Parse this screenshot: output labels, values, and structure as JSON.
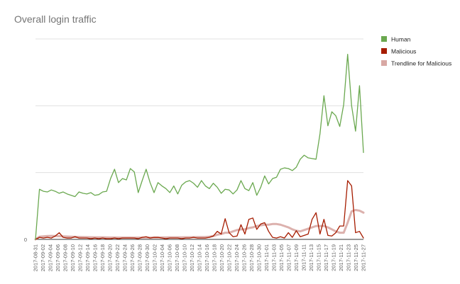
{
  "chart_data": {
    "type": "line",
    "title": "Overall login traffic",
    "xlabel": "",
    "ylabel": "",
    "ylim": [
      0,
      3
    ],
    "y_ticks": [
      {
        "value": 0,
        "label": "0"
      },
      {
        "value": 1,
        "label": ""
      },
      {
        "value": 2,
        "label": ""
      },
      {
        "value": 3,
        "label": ""
      }
    ],
    "grid": true,
    "legend_position": "right",
    "x_tick_labels": [
      "2017-08-31",
      "2017-09-02",
      "2017-09-04",
      "2017-09-06",
      "2017-09-08",
      "2017-09-10",
      "2017-09-12",
      "2017-09-14",
      "2017-09-16",
      "2017-09-18",
      "2017-09-20",
      "2017-09-22",
      "2017-09-24",
      "2017-09-26",
      "2017-09-28",
      "2017-09-30",
      "2017-10-02",
      "2017-10-04",
      "2017-10-06",
      "2017-10-08",
      "2017-10-10",
      "2017-10-12",
      "2017-10-14",
      "2017-10-16",
      "2017-10-18",
      "2017-10-20",
      "2017-10-22",
      "2017-10-24",
      "2017-10-26",
      "2017-10-28",
      "2017-10-30",
      "2017-11-01",
      "2017-11-03",
      "2017-11-05",
      "2017-11-07",
      "2017-11-09",
      "2017-11-11",
      "2017-11-13",
      "2017-11-15",
      "2017-11-17",
      "2017-11-19",
      "2017-11-21",
      "2017-11-23",
      "2017-11-25",
      "2017-11-27"
    ],
    "series": [
      {
        "name": "Human",
        "color": "#6aa84f",
        "values": [
          0,
          0.75,
          0.72,
          0.71,
          0.74,
          0.72,
          0.69,
          0.71,
          0.68,
          0.66,
          0.64,
          0.71,
          0.69,
          0.68,
          0.7,
          0.66,
          0.67,
          0.71,
          0.72,
          0.91,
          1.05,
          0.85,
          0.91,
          0.89,
          1.06,
          1.01,
          0.7,
          0.88,
          1.05,
          0.85,
          0.7,
          0.85,
          0.8,
          0.76,
          0.7,
          0.8,
          0.68,
          0.81,
          0.86,
          0.88,
          0.84,
          0.78,
          0.88,
          0.8,
          0.76,
          0.84,
          0.78,
          0.69,
          0.75,
          0.74,
          0.68,
          0.74,
          0.88,
          0.76,
          0.73,
          0.85,
          0.66,
          0.78,
          0.95,
          0.83,
          0.91,
          0.93,
          1.05,
          1.07,
          1.06,
          1.03,
          1.08,
          1.2,
          1.26,
          1.22,
          1.21,
          1.2,
          1.58,
          2.15,
          1.7,
          1.91,
          1.85,
          1.69,
          2.02,
          2.77,
          2.0,
          1.62,
          2.3,
          1.3
        ]
      },
      {
        "name": "Malicious",
        "color": "#a61c00",
        "values": [
          0,
          0.03,
          0.02,
          0.03,
          0.02,
          0.05,
          0.1,
          0.03,
          0.02,
          0.02,
          0.04,
          0.02,
          0.02,
          0.02,
          0.01,
          0.02,
          0.01,
          0.02,
          0.01,
          0.01,
          0.02,
          0.01,
          0.02,
          0.02,
          0.02,
          0.02,
          0.01,
          0.03,
          0.04,
          0.02,
          0.03,
          0.03,
          0.02,
          0.01,
          0.02,
          0.02,
          0.02,
          0.01,
          0.02,
          0.02,
          0.03,
          0.02,
          0.02,
          0.02,
          0.03,
          0.05,
          0.12,
          0.08,
          0.31,
          0.1,
          0.04,
          0.05,
          0.22,
          0.08,
          0.3,
          0.32,
          0.15,
          0.23,
          0.25,
          0.12,
          0.03,
          0.02,
          0.04,
          0.02,
          0.1,
          0.03,
          0.13,
          0.04,
          0.06,
          0.08,
          0.3,
          0.4,
          0.08,
          0.3,
          0.06,
          0.05,
          0.1,
          0.2,
          0.2,
          0.88,
          0.8,
          0.1,
          0.12,
          0.02
        ]
      },
      {
        "name": "Trendline for Malicious",
        "color": "#d8a8a4",
        "values": [
          0,
          0.04,
          0.045,
          0.05,
          0.052,
          0.05,
          0.048,
          0.045,
          0.042,
          0.04,
          0.038,
          0.036,
          0.035,
          0.033,
          0.032,
          0.03,
          0.03,
          0.03,
          0.029,
          0.028,
          0.028,
          0.027,
          0.027,
          0.026,
          0.026,
          0.025,
          0.026,
          0.026,
          0.027,
          0.027,
          0.028,
          0.028,
          0.029,
          0.029,
          0.03,
          0.03,
          0.031,
          0.031,
          0.032,
          0.032,
          0.033,
          0.034,
          0.035,
          0.036,
          0.04,
          0.05,
          0.07,
          0.08,
          0.1,
          0.1,
          0.12,
          0.14,
          0.15,
          0.15,
          0.17,
          0.18,
          0.2,
          0.21,
          0.22,
          0.22,
          0.23,
          0.23,
          0.22,
          0.2,
          0.18,
          0.15,
          0.13,
          0.12,
          0.14,
          0.16,
          0.18,
          0.2,
          0.2,
          0.2,
          0.18,
          0.15,
          0.12,
          0.1,
          0.1,
          0.25,
          0.42,
          0.44,
          0.43,
          0.4
        ]
      }
    ]
  }
}
